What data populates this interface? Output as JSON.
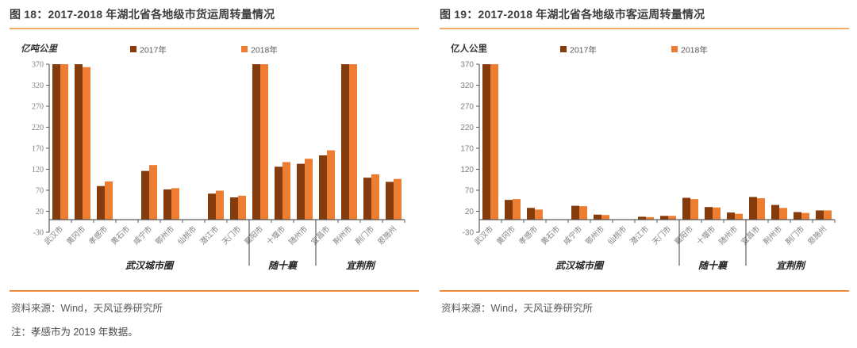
{
  "colors": {
    "bar_2017": "#843c0c",
    "bar_2018": "#ed7d31",
    "title_rule": "#f3a964",
    "footer_rule": "#ef8a3a",
    "axis_line": "#595959",
    "tick_text": "#7f7f7f"
  },
  "figures": [
    {
      "title": "图 18：2017-2018 年湖北省各地级市货运周转量情况",
      "source": "资料来源：Wind，天风证券研究所",
      "note": "注：孝感市为 2019 年数据。"
    },
    {
      "title": "图 19：2017-2018 年湖北省各地级市客运周转量情况",
      "source": "资料来源：Wind，天风证券研究所"
    }
  ],
  "chart_data": [
    {
      "type": "bar",
      "title": "图 18：2017-2018 年湖北省各地级市货运周转量情况",
      "unit_label": "亿吨公里",
      "xlabel": "",
      "ylabel": "亿吨公里",
      "ylim": [
        -30,
        370
      ],
      "yticks": [
        370,
        320,
        270,
        220,
        170,
        120,
        70,
        20,
        -30
      ],
      "grid": false,
      "legend_position": "top",
      "categories": [
        "武汉市",
        "黄冈市",
        "孝感市",
        "黄石市",
        "咸宁市",
        "鄂州市",
        "仙桃市",
        "潜江市",
        "天门市",
        "襄阳市",
        "十堰市",
        "随州市",
        "宜昌市",
        "荆州市",
        "荆门市",
        "恩施州"
      ],
      "series": [
        {
          "name": "2017年",
          "color": "#843c0c",
          "values": [
            370,
            370,
            80,
            0,
            116,
            72,
            0,
            62,
            53,
            370,
            126,
            133,
            153,
            370,
            100,
            90
          ]
        },
        {
          "name": "2018年",
          "color": "#ed7d31",
          "values": [
            370,
            363,
            91,
            0,
            130,
            75,
            0,
            69,
            57,
            370,
            137,
            145,
            165,
            370,
            108,
            97
          ]
        }
      ],
      "clipped_at_ymax": [
        "武汉市",
        "襄阳市",
        "荆州市"
      ],
      "groups": [
        {
          "label": "武汉城市圈",
          "from": 0,
          "to": 8
        },
        {
          "label": "随十襄",
          "from": 9,
          "to": 11
        },
        {
          "label": "宜荆荆",
          "from": 12,
          "to": 15
        }
      ]
    },
    {
      "type": "bar",
      "title": "图 19：2017-2018 年湖北省各地级市客运周转量情况",
      "unit_label": "亿人公里",
      "xlabel": "",
      "ylabel": "亿人公里",
      "ylim": [
        -30,
        370
      ],
      "yticks": [
        370,
        320,
        270,
        220,
        170,
        120,
        70,
        20,
        -30
      ],
      "grid": false,
      "legend_position": "top",
      "categories": [
        "武汉市",
        "黄冈市",
        "孝感市",
        "黄石市",
        "咸宁市",
        "鄂州市",
        "仙桃市",
        "潜江市",
        "天门市",
        "襄阳市",
        "十堰市",
        "随州市",
        "宜昌市",
        "荆州市",
        "荆门市",
        "恩施州"
      ],
      "series": [
        {
          "name": "2017年",
          "color": "#843c0c",
          "values": [
            370,
            47,
            28,
            0,
            33,
            12,
            0,
            7,
            9,
            52,
            30,
            17,
            54,
            35,
            18,
            22
          ]
        },
        {
          "name": "2018年",
          "color": "#ed7d31",
          "values": [
            370,
            49,
            24,
            0,
            32,
            11,
            0,
            6,
            9,
            49,
            29,
            14,
            51,
            28,
            16,
            22
          ]
        }
      ],
      "clipped_at_ymax": [
        "武汉市"
      ],
      "groups": [
        {
          "label": "武汉城市圈",
          "from": 0,
          "to": 8
        },
        {
          "label": "随十襄",
          "from": 9,
          "to": 11
        },
        {
          "label": "宜荆荆",
          "from": 12,
          "to": 15
        }
      ]
    }
  ]
}
